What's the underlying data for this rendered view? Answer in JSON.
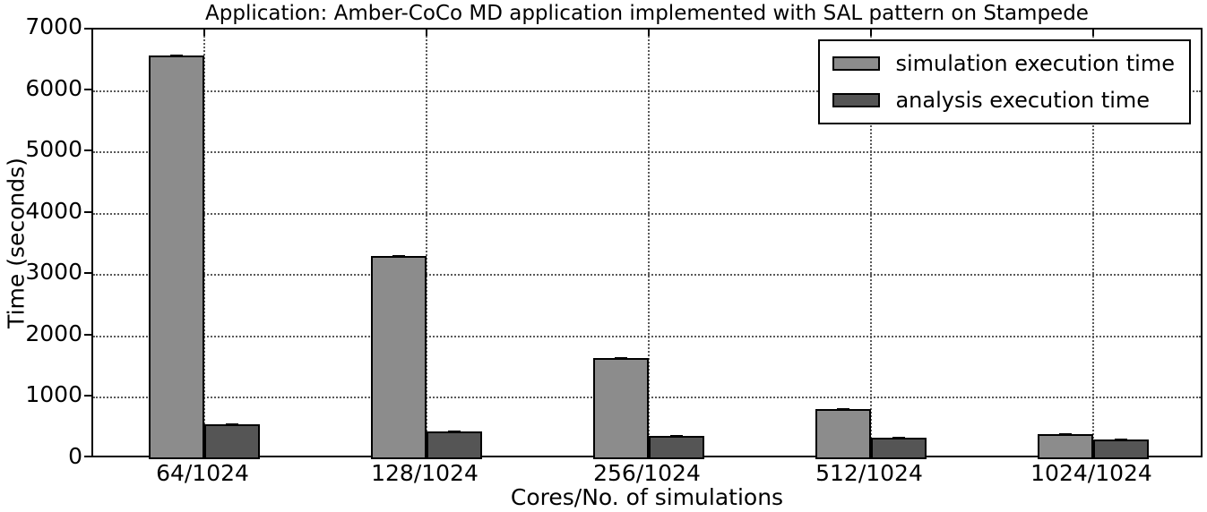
{
  "chart_data": {
    "type": "bar",
    "title": "Application: Amber-CoCo MD application implemented with SAL pattern on Stampede",
    "xlabel": "Cores/No. of simulations",
    "ylabel": "Time (seconds)",
    "categories": [
      "64/1024",
      "128/1024",
      "256/1024",
      "512/1024",
      "1024/1024"
    ],
    "series": [
      {
        "name": "simulation execution time",
        "color": "#8c8c8c",
        "values": [
          6570,
          3310,
          1655,
          815,
          410
        ]
      },
      {
        "name": "analysis execution time",
        "color": "#555555",
        "values": [
          565,
          455,
          375,
          345,
          320
        ]
      }
    ],
    "ylim": [
      0,
      7000
    ],
    "yticks": [
      0,
      1000,
      2000,
      3000,
      4000,
      5000,
      6000,
      7000
    ],
    "grid": true,
    "grid_style": "dotted",
    "error_bar_caps_visible": true,
    "legend_position": "upper right",
    "colors": {
      "background": "#ffffff",
      "axis": "#000000",
      "grid": "#5a5a5a",
      "bar_edge": "#000000"
    }
  }
}
